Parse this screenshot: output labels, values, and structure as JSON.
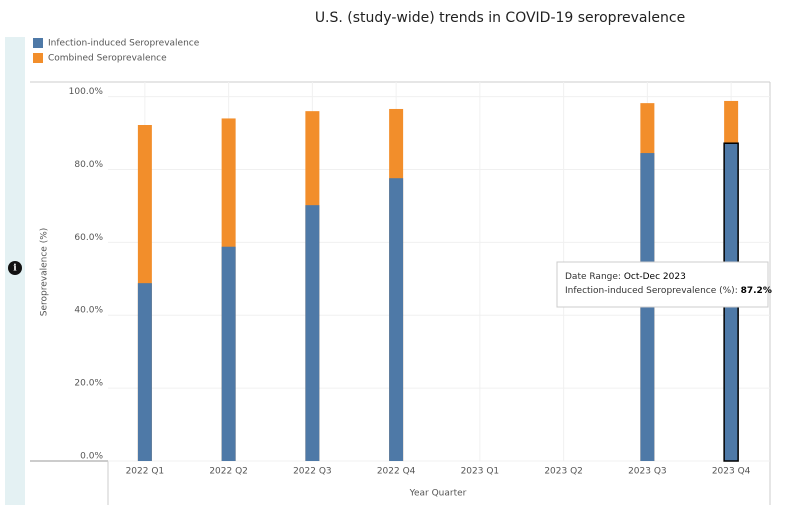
{
  "chart_data": {
    "type": "bar",
    "title": "U.S. (study-wide)  trends in COVID-19 seroprevalence",
    "x_label": "Year Quarter",
    "y_label": "Seroprevalence (%)",
    "categories": [
      "2022 Q1",
      "2022 Q2",
      "2022 Q3",
      "2022 Q4",
      "2023 Q1",
      "2023 Q2",
      "2023 Q3",
      "2023 Q4"
    ],
    "series": [
      {
        "name": "Infection-induced Seroprevalence",
        "color": "#4e79a7",
        "values": [
          48.8,
          58.8,
          70.2,
          77.6,
          null,
          null,
          84.5,
          87.2
        ]
      },
      {
        "name": "Combined Seroprevalence",
        "color": "#f28e2b",
        "values": [
          92.2,
          94.0,
          96.0,
          96.6,
          null,
          null,
          98.2,
          98.8
        ]
      }
    ],
    "ylim": [
      0,
      104
    ],
    "yticks": [
      {
        "value": 0,
        "label": "0.0%"
      },
      {
        "value": 20,
        "label": "20.0%"
      },
      {
        "value": 40,
        "label": "40.0%"
      },
      {
        "value": 60,
        "label": "60.0%"
      },
      {
        "value": 80,
        "label": "80.0%"
      },
      {
        "value": 100,
        "label": "100.0%"
      }
    ],
    "grid": true,
    "tooltip": {
      "date_label": "Date Range:",
      "date_value": "Oct-Dec 2023",
      "metric_label": "Infection-induced Seroprevalence (%):",
      "metric_value": "87.2%"
    }
  }
}
